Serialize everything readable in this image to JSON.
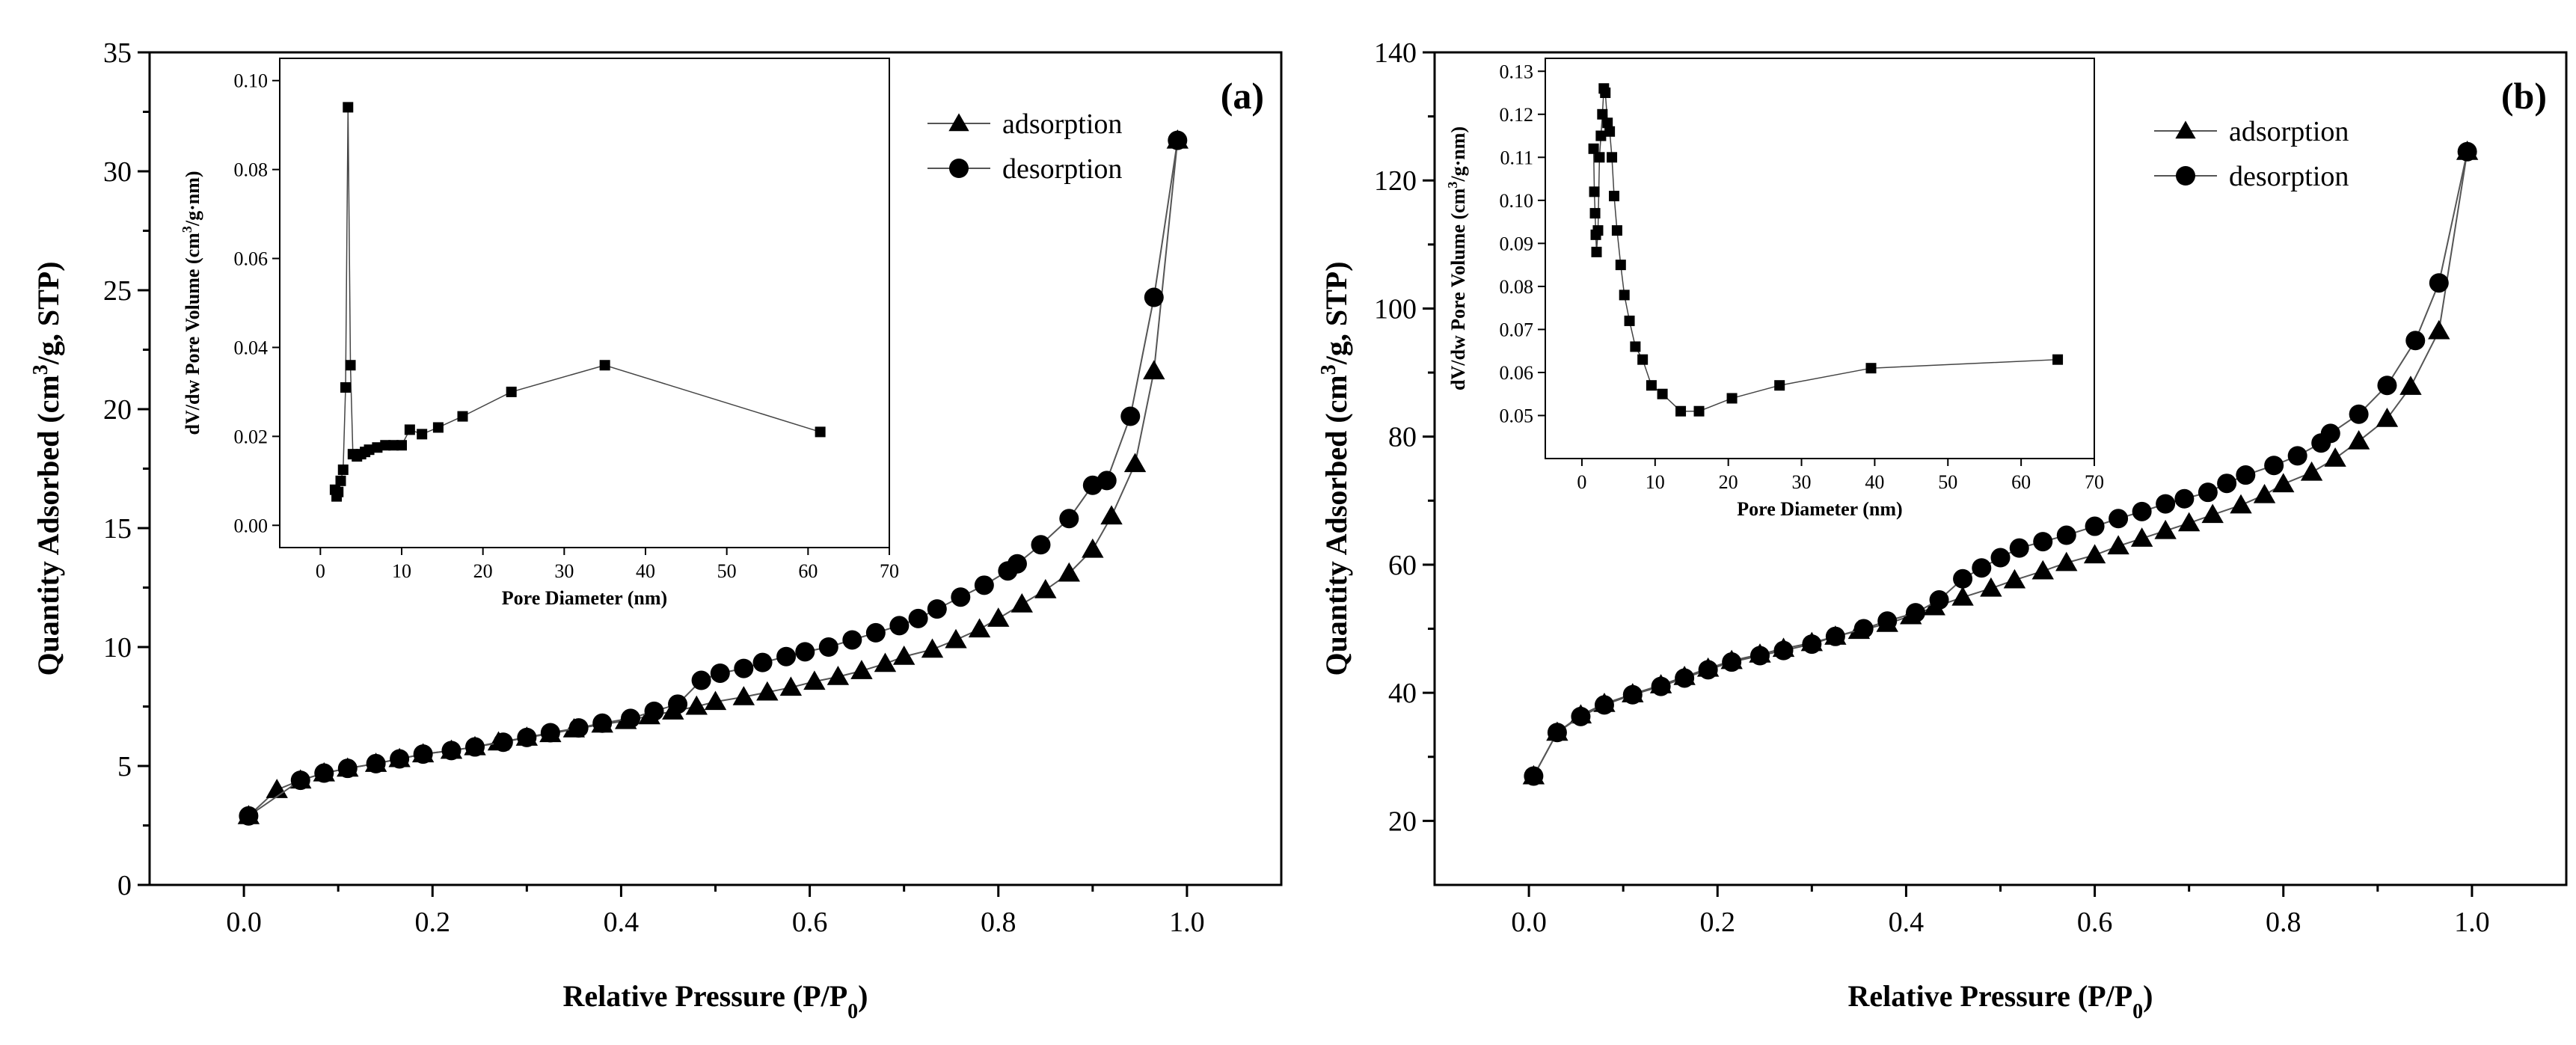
{
  "chart_data": [
    {
      "type": "line",
      "panel_label": "(a)",
      "xlabel": "Relative Pressure (P/P",
      "xlabel_sub": "0",
      "xlabel_end": ")",
      "ylabel": "Quantity Adsorbed (cm",
      "ylabel_sup": "3",
      "ylabel_end": "/g, STP)",
      "xlim": [
        -0.1,
        1.1
      ],
      "ylim": [
        0,
        35
      ],
      "xticks": [
        0.0,
        0.2,
        0.4,
        0.6,
        0.8,
        1.0
      ],
      "xtick_labels": [
        "0.0",
        "0.2",
        "0.4",
        "0.6",
        "0.8",
        "1.0"
      ],
      "yticks": [
        0,
        5,
        10,
        15,
        20,
        25,
        30,
        35
      ],
      "ytick_labels": [
        "0",
        "5",
        "10",
        "15",
        "20",
        "25",
        "30",
        "35"
      ],
      "legend": {
        "position": "top-right",
        "entries": [
          "adsorption",
          "desorption"
        ]
      },
      "series": [
        {
          "name": "adsorption",
          "marker": "triangle",
          "x": [
            0.005,
            0.035,
            0.06,
            0.085,
            0.11,
            0.14,
            0.165,
            0.19,
            0.22,
            0.245,
            0.27,
            0.3,
            0.325,
            0.35,
            0.38,
            0.405,
            0.43,
            0.455,
            0.48,
            0.5,
            0.53,
            0.555,
            0.58,
            0.605,
            0.63,
            0.655,
            0.68,
            0.7,
            0.73,
            0.755,
            0.78,
            0.8,
            0.825,
            0.85,
            0.875,
            0.9,
            0.92,
            0.945,
            0.965,
            0.99
          ],
          "y": [
            2.9,
            4.0,
            4.4,
            4.7,
            4.9,
            5.1,
            5.3,
            5.5,
            5.65,
            5.8,
            6.0,
            6.2,
            6.35,
            6.55,
            6.75,
            6.9,
            7.1,
            7.3,
            7.5,
            7.7,
            7.9,
            8.1,
            8.3,
            8.55,
            8.75,
            9.0,
            9.3,
            9.6,
            9.9,
            10.3,
            10.75,
            11.2,
            11.8,
            12.4,
            13.1,
            14.1,
            15.5,
            17.7,
            21.6,
            31.3
          ]
        },
        {
          "name": "desorption",
          "marker": "circle",
          "x": [
            0.99,
            0.965,
            0.94,
            0.915,
            0.9,
            0.875,
            0.845,
            0.82,
            0.81,
            0.785,
            0.76,
            0.735,
            0.715,
            0.695,
            0.67,
            0.645,
            0.62,
            0.595,
            0.575,
            0.55,
            0.53,
            0.505,
            0.485,
            0.46,
            0.435,
            0.41,
            0.38,
            0.355,
            0.325,
            0.3,
            0.275,
            0.245,
            0.22,
            0.19,
            0.165,
            0.14,
            0.11,
            0.085,
            0.06,
            0.005
          ],
          "y": [
            31.3,
            24.7,
            19.7,
            17.0,
            16.8,
            15.4,
            14.3,
            13.5,
            13.2,
            12.6,
            12.1,
            11.6,
            11.2,
            10.9,
            10.6,
            10.3,
            10.0,
            9.8,
            9.6,
            9.35,
            9.1,
            8.9,
            8.6,
            7.6,
            7.3,
            7.0,
            6.8,
            6.6,
            6.4,
            6.2,
            6.0,
            5.8,
            5.65,
            5.5,
            5.3,
            5.1,
            4.9,
            4.7,
            4.4,
            2.9
          ]
        }
      ],
      "inset": {
        "type": "line",
        "marker": "square",
        "xlabel": "Pore Diameter (nm)",
        "ylabel": "dV/dw Pore Volume (cm",
        "ylabel_sup": "3",
        "ylabel_end": "/g·nm)",
        "xlim": [
          -5,
          70
        ],
        "ylim": [
          -0.005,
          0.105
        ],
        "xticks": [
          0,
          10,
          20,
          30,
          40,
          50,
          60,
          70
        ],
        "xtick_labels": [
          "0",
          "10",
          "20",
          "30",
          "40",
          "50",
          "60",
          "70"
        ],
        "yticks": [
          0.0,
          0.02,
          0.04,
          0.06,
          0.08,
          0.1
        ],
        "ytick_labels": [
          "0.00",
          "0.02",
          "0.04",
          "0.06",
          "0.08",
          "0.10"
        ],
        "x": [
          1.8,
          2.0,
          2.2,
          2.5,
          2.8,
          3.1,
          3.4,
          3.7,
          4.0,
          4.5,
          5.0,
          5.5,
          6.0,
          7.0,
          8.0,
          9.0,
          10.0,
          11.0,
          12.5,
          14.5,
          17.5,
          23.5,
          35.0,
          61.5
        ],
        "y": [
          0.008,
          0.0065,
          0.0075,
          0.01,
          0.0125,
          0.031,
          0.094,
          0.036,
          0.016,
          0.0155,
          0.016,
          0.0165,
          0.017,
          0.0175,
          0.018,
          0.018,
          0.018,
          0.0215,
          0.0205,
          0.022,
          0.0245,
          0.03,
          0.036,
          0.021
        ]
      }
    },
    {
      "type": "line",
      "panel_label": "(b)",
      "xlabel": "Relative Pressure (P/P",
      "xlabel_sub": "0",
      "xlabel_end": ")",
      "ylabel": "Quantity Adsorbed (cm",
      "ylabel_sup": "3",
      "ylabel_end": "/g, STP)",
      "xlim": [
        -0.1,
        1.1
      ],
      "ylim": [
        10,
        140
      ],
      "xticks": [
        0.0,
        0.2,
        0.4,
        0.6,
        0.8,
        1.0
      ],
      "xtick_labels": [
        "0.0",
        "0.2",
        "0.4",
        "0.6",
        "0.8",
        "1.0"
      ],
      "yticks": [
        20,
        40,
        60,
        80,
        100,
        120,
        140
      ],
      "ytick_labels": [
        "20",
        "40",
        "60",
        "80",
        "100",
        "120",
        "140"
      ],
      "legend": {
        "position": "top-right",
        "entries": [
          "adsorption",
          "desorption"
        ]
      },
      "series": [
        {
          "name": "adsorption",
          "marker": "triangle",
          "x": [
            0.005,
            0.03,
            0.055,
            0.08,
            0.11,
            0.14,
            0.165,
            0.19,
            0.215,
            0.245,
            0.27,
            0.3,
            0.325,
            0.35,
            0.38,
            0.405,
            0.43,
            0.46,
            0.49,
            0.515,
            0.545,
            0.57,
            0.6,
            0.625,
            0.65,
            0.675,
            0.7,
            0.725,
            0.755,
            0.78,
            0.8,
            0.83,
            0.855,
            0.88,
            0.91,
            0.935,
            0.965,
            0.995
          ],
          "y": [
            27.0,
            33.8,
            36.5,
            38.3,
            39.8,
            41.2,
            42.5,
            43.8,
            45.0,
            46.0,
            46.9,
            47.8,
            48.8,
            49.7,
            50.8,
            52.0,
            53.4,
            54.9,
            56.3,
            57.6,
            59.0,
            60.3,
            61.5,
            62.9,
            64.1,
            65.3,
            66.5,
            67.8,
            69.3,
            70.9,
            72.6,
            74.4,
            76.6,
            79.3,
            82.8,
            87.8,
            96.5,
            124.5
          ]
        },
        {
          "name": "desorption",
          "marker": "circle",
          "x": [
            0.995,
            0.965,
            0.94,
            0.91,
            0.88,
            0.85,
            0.84,
            0.815,
            0.79,
            0.76,
            0.74,
            0.72,
            0.695,
            0.675,
            0.65,
            0.625,
            0.6,
            0.57,
            0.545,
            0.52,
            0.5,
            0.48,
            0.46,
            0.435,
            0.41,
            0.38,
            0.355,
            0.325,
            0.3,
            0.27,
            0.245,
            0.215,
            0.19,
            0.165,
            0.14,
            0.11,
            0.08,
            0.055,
            0.03,
            0.005
          ],
          "y": [
            124.5,
            104.0,
            95.0,
            88.0,
            83.5,
            80.5,
            79.0,
            77.0,
            75.5,
            74.0,
            72.7,
            71.3,
            70.3,
            69.5,
            68.3,
            67.2,
            66.0,
            64.6,
            63.6,
            62.6,
            61.1,
            59.5,
            57.8,
            54.5,
            52.5,
            51.2,
            50.0,
            48.8,
            47.6,
            46.6,
            45.8,
            44.8,
            43.6,
            42.3,
            41.0,
            39.7,
            38.1,
            36.3,
            33.8,
            27.0
          ]
        }
      ],
      "inset": {
        "type": "line",
        "marker": "square",
        "xlabel": "Pore Diameter (nm)",
        "ylabel": "dV/dw Pore Volume (cm",
        "ylabel_sup": "3",
        "ylabel_end": "/g·nm)",
        "xlim": [
          -5,
          70
        ],
        "ylim": [
          0.04,
          0.133
        ],
        "xticks": [
          0,
          10,
          20,
          30,
          40,
          50,
          60,
          70
        ],
        "xtick_labels": [
          "0",
          "10",
          "20",
          "30",
          "40",
          "50",
          "60",
          "70"
        ],
        "yticks": [
          0.05,
          0.06,
          0.07,
          0.08,
          0.09,
          0.1,
          0.11,
          0.12,
          0.13
        ],
        "ytick_labels": [
          "0.05",
          "0.06",
          "0.07",
          "0.08",
          "0.09",
          "0.10",
          "0.11",
          "0.12",
          "0.13"
        ],
        "x": [
          1.6,
          1.7,
          1.8,
          1.9,
          2.0,
          2.2,
          2.4,
          2.6,
          2.8,
          3.0,
          3.2,
          3.5,
          3.8,
          4.1,
          4.4,
          4.8,
          5.3,
          5.8,
          6.5,
          7.3,
          8.3,
          9.5,
          11.0,
          13.5,
          16.0,
          20.5,
          27.0,
          39.5,
          65.0
        ],
        "y": [
          0.112,
          0.102,
          0.097,
          0.092,
          0.088,
          0.093,
          0.11,
          0.115,
          0.12,
          0.126,
          0.125,
          0.118,
          0.116,
          0.11,
          0.101,
          0.093,
          0.085,
          0.078,
          0.072,
          0.066,
          0.063,
          0.057,
          0.055,
          0.051,
          0.051,
          0.054,
          0.057,
          0.061,
          0.063
        ]
      }
    }
  ]
}
